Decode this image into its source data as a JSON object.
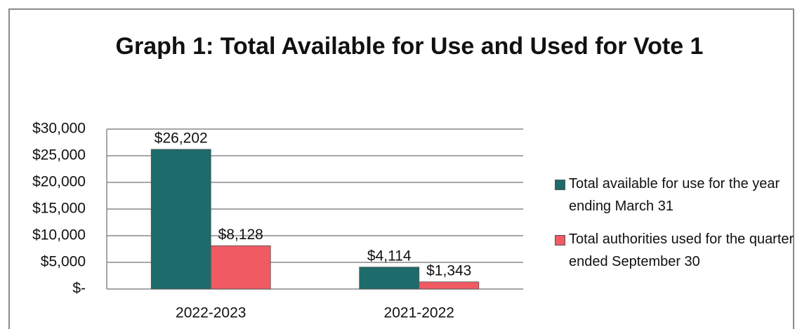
{
  "chart_data": {
    "type": "bar",
    "title": "Graph 1: Total Available for Use and Used for Vote 1",
    "categories": [
      "2022-2023",
      "2021-2022"
    ],
    "series": [
      {
        "name": "Total available for use for the year ending March 31",
        "color": "#1d6b6b",
        "values": [
          26202,
          4114
        ],
        "value_labels": [
          "$26,202",
          "$4,114"
        ]
      },
      {
        "name": "Total authorities used for the quarter ended September 30",
        "color": "#ef5a63",
        "values": [
          8128,
          1343
        ],
        "value_labels": [
          "$8,128",
          "$1,343"
        ]
      }
    ],
    "ylim": [
      0,
      30000
    ],
    "yticks": [
      {
        "value": 0,
        "label": "$-"
      },
      {
        "value": 5000,
        "label": "$5,000"
      },
      {
        "value": 10000,
        "label": "$10,000"
      },
      {
        "value": 15000,
        "label": "$15,000"
      },
      {
        "value": 20000,
        "label": "$20,000"
      },
      {
        "value": 25000,
        "label": "$25,000"
      },
      {
        "value": 30000,
        "label": "$30,000"
      }
    ],
    "grid": true,
    "legend": "right"
  }
}
